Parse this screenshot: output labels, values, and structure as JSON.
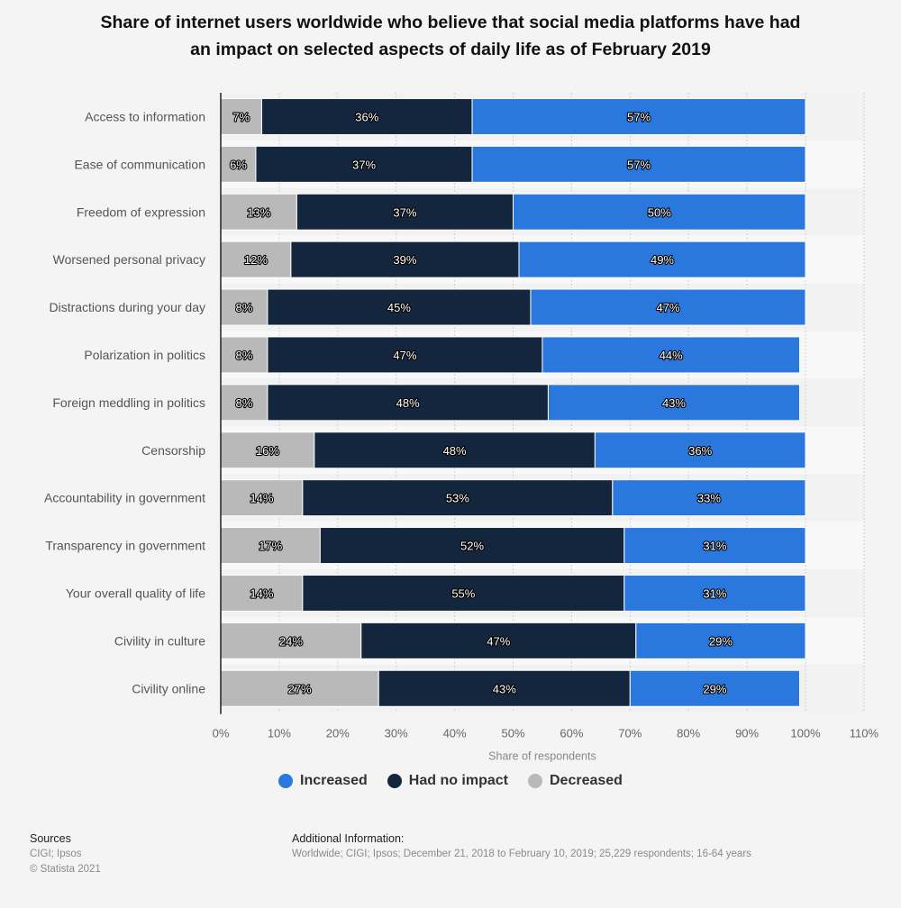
{
  "chart_data": {
    "type": "bar",
    "orientation": "horizontal",
    "stacked": true,
    "title": "Share of internet users worldwide who believe that social media platforms have had an impact on selected aspects of daily life as of February 2019",
    "title_lines": [
      "Share of internet users worldwide who believe that social media platforms have had",
      "an impact on selected aspects of daily life as of February 2019"
    ],
    "xlabel": "Share of respondents",
    "ylabel": "",
    "xlim": [
      0,
      110
    ],
    "x_ticks": [
      "0%",
      "10%",
      "20%",
      "30%",
      "40%",
      "50%",
      "60%",
      "70%",
      "80%",
      "90%",
      "100%",
      "110%"
    ],
    "x_tick_values": [
      0,
      10,
      20,
      30,
      40,
      50,
      60,
      70,
      80,
      90,
      100,
      110
    ],
    "grid": true,
    "legend_position": "bottom-center",
    "categories": [
      "Access to information",
      "Ease of communication",
      "Freedom of expression",
      "Worsened personal privacy",
      "Distractions during your day",
      "Polarization in politics",
      "Foreign meddling in politics",
      "Censorship",
      "Accountability in government",
      "Transparency in government",
      "Your overall quality of life",
      "Civility in culture",
      "Civility online"
    ],
    "series": [
      {
        "name": "Decreased",
        "color": "#b9b9b9",
        "values": [
          7,
          6,
          13,
          12,
          8,
          8,
          8,
          16,
          14,
          17,
          14,
          24,
          27
        ]
      },
      {
        "name": "Had no impact",
        "color": "#13263d",
        "values": [
          36,
          37,
          37,
          39,
          45,
          47,
          48,
          48,
          53,
          52,
          55,
          47,
          43
        ]
      },
      {
        "name": "Increased",
        "color": "#2a77de",
        "values": [
          57,
          57,
          50,
          49,
          47,
          44,
          43,
          36,
          33,
          31,
          31,
          29,
          29
        ]
      }
    ],
    "value_suffix": "%"
  },
  "legend": [
    {
      "label": "Increased",
      "color": "#2a77de"
    },
    {
      "label": "Had no impact",
      "color": "#13263d"
    },
    {
      "label": "Decreased",
      "color": "#b9b9b9"
    }
  ],
  "footer": {
    "sources_heading": "Sources",
    "sources": "CIGI; Ipsos",
    "copyright": "© Statista 2021",
    "additional_heading": "Additional Information:",
    "additional_text": "Worldwide; CIGI; Ipsos; December 21, 2018 to February 10, 2019; 25,229 respondents; 16-64 years"
  }
}
